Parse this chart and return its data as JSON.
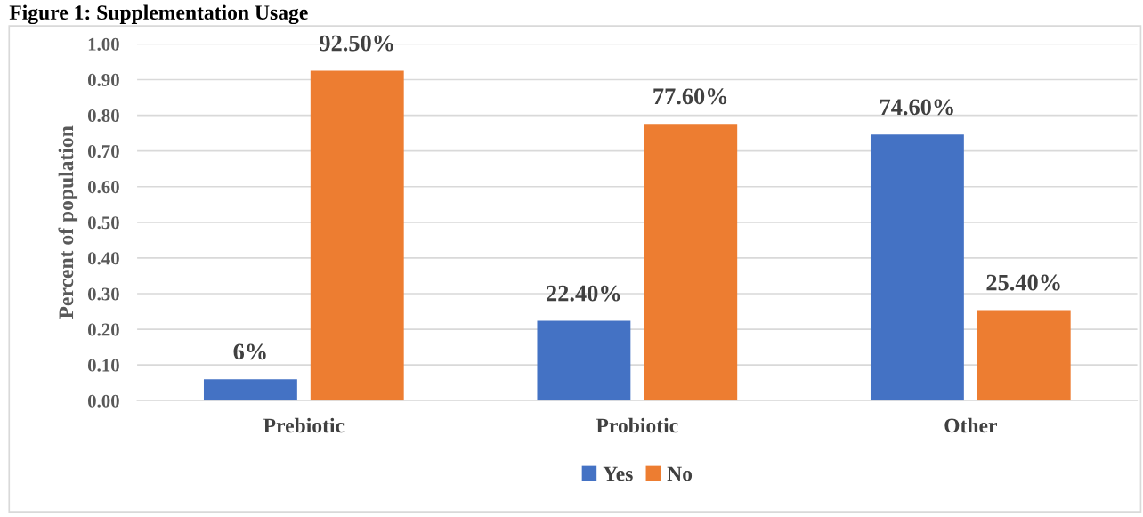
{
  "chart_data": {
    "type": "bar",
    "title": "Figure 1: Supplementation Usage",
    "ylabel": "Percent of population",
    "categories": [
      "Prebiotic",
      "Probiotic",
      "Other"
    ],
    "series": [
      {
        "name": "Yes",
        "color": "#4472c4",
        "values": [
          0.06,
          0.224,
          0.746
        ],
        "value_labels": [
          "6%",
          "22.40%",
          "74.60%"
        ]
      },
      {
        "name": "No",
        "color": "#ed7d31",
        "values": [
          0.925,
          0.776,
          0.254
        ],
        "value_labels": [
          "92.50%",
          "77.60%",
          "25.40%"
        ]
      }
    ],
    "ylim": [
      0,
      1
    ],
    "yticks": [
      {
        "value": 0,
        "label": "0.00"
      },
      {
        "value": 0.1,
        "label": "0.10"
      },
      {
        "value": 0.2,
        "label": "0.20"
      },
      {
        "value": 0.3,
        "label": "0.30"
      },
      {
        "value": 0.4,
        "label": "0.40"
      },
      {
        "value": 0.5,
        "label": "0.50"
      },
      {
        "value": 0.6,
        "label": "0.60"
      },
      {
        "value": 0.7,
        "label": "0.70"
      },
      {
        "value": 0.8,
        "label": "0.80"
      },
      {
        "value": 0.9,
        "label": "0.90"
      },
      {
        "value": 1,
        "label": "1.00"
      }
    ],
    "grid": "y",
    "legend": "bottom"
  }
}
